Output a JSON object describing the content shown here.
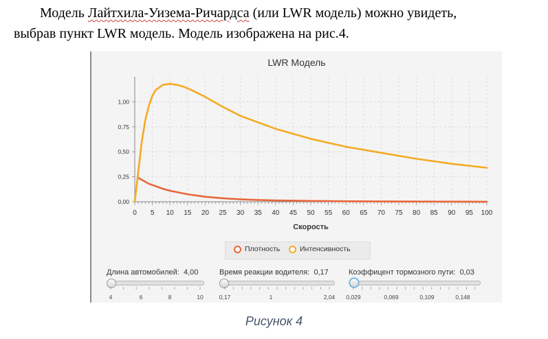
{
  "paragraph": {
    "line1_a": "Модель ",
    "line1_b": "Лайтхила-Уизема-Ричардса",
    "line1_c": " (или LWR модель) можно увидеть,",
    "line2": "выбрав пункт LWR модель. Модель изображена на рис.4."
  },
  "chart_data": {
    "type": "line",
    "title": "LWR Модель",
    "xlabel": "Скорость",
    "ylabel": "",
    "xlim": [
      0,
      100
    ],
    "ylim": [
      0,
      1.25
    ],
    "x_ticks": [
      "0",
      "5",
      "10",
      "15",
      "20",
      "25",
      "30",
      "35",
      "40",
      "45",
      "50",
      "55",
      "60",
      "65",
      "70",
      "75",
      "80",
      "85",
      "90",
      "95",
      "100"
    ],
    "y_ticks": [
      "0,00",
      "0,25",
      "0,50",
      "0,75",
      "1,00"
    ],
    "y_tick_values": [
      0,
      0.25,
      0.5,
      0.75,
      1.0
    ],
    "grid": true,
    "legend": "bottom-center",
    "series": [
      {
        "name": "Плотность",
        "color": "#e8663a",
        "x": [
          1,
          2,
          4,
          6,
          8,
          10,
          15,
          20,
          25,
          30,
          35,
          40,
          50,
          60,
          70,
          80,
          90,
          100
        ],
        "y": [
          0.24,
          0.22,
          0.18,
          0.155,
          0.13,
          0.11,
          0.075,
          0.05,
          0.035,
          0.025,
          0.018,
          0.013,
          0.008,
          0.005,
          0.003,
          0.002,
          0.0015,
          0.001
        ]
      },
      {
        "name": "Интенсивность",
        "color": "#f4aa23",
        "x": [
          0,
          1,
          2,
          3,
          4,
          5,
          6,
          8,
          10,
          12,
          14,
          16,
          20,
          25,
          30,
          40,
          50,
          60,
          70,
          80,
          90,
          100
        ],
        "y": [
          0.0,
          0.3,
          0.6,
          0.82,
          0.96,
          1.06,
          1.12,
          1.17,
          1.18,
          1.17,
          1.15,
          1.12,
          1.05,
          0.95,
          0.86,
          0.73,
          0.63,
          0.55,
          0.49,
          0.43,
          0.38,
          0.34
        ]
      }
    ]
  },
  "legend": {
    "density": "Плотность",
    "intensity": "Интенсивность"
  },
  "sliders": [
    {
      "label": "Длина автомобилей:",
      "value": "4,00",
      "ticks": [
        "4",
        "6",
        "8",
        "10"
      ],
      "position": 0.0
    },
    {
      "label": "Время реакции водителя:",
      "value": "0,17",
      "ticks": [
        "0,17",
        "1",
        "2,04"
      ],
      "position": 0.0
    },
    {
      "label": "Коэффицент тормозного пути:",
      "value": "0,03",
      "ticks": [
        "0,029",
        "0,069",
        "0,109",
        "0,148"
      ],
      "position": 0.0
    }
  ],
  "caption": "Рисунок 4"
}
